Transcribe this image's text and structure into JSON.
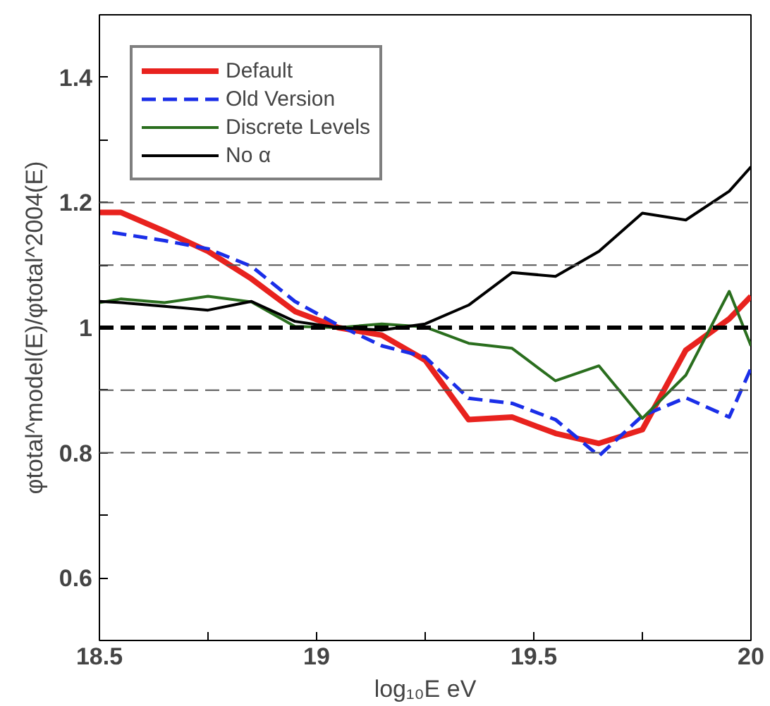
{
  "chart_data": {
    "type": "line",
    "xlabel": "log₁₀E eV",
    "ylabel": "φtotal^model(E)/φtotal^2004(E)",
    "x": [
      18.5,
      18.55,
      18.65,
      18.75,
      18.85,
      18.95,
      19.05,
      19.15,
      19.25,
      19.35,
      19.45,
      19.55,
      19.65,
      19.75,
      19.85,
      19.95,
      20
    ],
    "series": [
      {
        "name": "Default",
        "color": "#e8221e",
        "line_style": "solid",
        "values": [
          1.184,
          1.184,
          1.154,
          1.122,
          1.078,
          1.026,
          1.0,
          0.988,
          0.948,
          0.853,
          0.857,
          0.831,
          0.815,
          0.837,
          0.964,
          1.014,
          1.05
        ]
      },
      {
        "name": "Old Version",
        "color": "#1a2ee8",
        "line_style": "dashed",
        "x": [
          18.53,
          18.65,
          18.75,
          18.85,
          18.95,
          19.05,
          19.15,
          19.25,
          19.35,
          19.45,
          19.55,
          19.65,
          19.75,
          19.85,
          19.95,
          20
        ],
        "values": [
          1.152,
          1.139,
          1.126,
          1.098,
          1.042,
          1.004,
          0.971,
          0.953,
          0.887,
          0.879,
          0.853,
          0.795,
          0.859,
          0.888,
          0.857,
          0.935
        ]
      },
      {
        "name": "Discrete Levels",
        "color": "#2a6e1e",
        "line_style": "solid",
        "values": [
          1.04,
          1.046,
          1.04,
          1.05,
          1.041,
          1.002,
          1.0,
          1.006,
          1.001,
          0.975,
          0.967,
          0.915,
          0.939,
          0.855,
          0.924,
          1.058,
          0.971
        ]
      },
      {
        "name": "No α",
        "color": "#000000",
        "line_style": "solid",
        "values": [
          1.042,
          1.04,
          1.034,
          1.028,
          1.042,
          1.01,
          1.0,
          0.996,
          1.006,
          1.036,
          1.088,
          1.082,
          1.122,
          1.183,
          1.172,
          1.218,
          1.257
        ]
      }
    ],
    "xlim": [
      18.5,
      20
    ],
    "ylim": [
      0.5,
      1.5
    ],
    "xticks": [
      18.5,
      {
        "value": 18.75,
        "label": null
      },
      19,
      {
        "value": 19.25,
        "label": null
      },
      19.5,
      {
        "value": 19.75,
        "label": null
      },
      20
    ],
    "yticks": [
      {
        "value": 0.6,
        "label": "0.6"
      },
      {
        "value": 0.7,
        "label": null
      },
      {
        "value": 0.8,
        "label": "0.8"
      },
      {
        "value": 0.9,
        "label": null
      },
      {
        "value": 1,
        "label": "1"
      },
      {
        "value": 1.1,
        "label": null
      },
      {
        "value": 1.2,
        "label": "1.2"
      },
      {
        "value": 1.3,
        "label": null
      },
      {
        "value": 1.4,
        "label": "1.4"
      }
    ],
    "ref_lines": [
      {
        "axis": "y",
        "value": 0.8,
        "color": "#555555",
        "line_style": "dashed"
      },
      {
        "axis": "y",
        "value": 0.9,
        "color": "#555555",
        "line_style": "dashed"
      },
      {
        "axis": "y",
        "value": 1,
        "color": "#000000",
        "line_style": "dashed"
      },
      {
        "axis": "y",
        "value": 1.1,
        "color": "#555555",
        "line_style": "dashed"
      },
      {
        "axis": "y",
        "value": 1.2,
        "color": "#555555",
        "line_style": "dashed"
      }
    ],
    "grid": false,
    "legend": "top left",
    "marker": "none"
  }
}
